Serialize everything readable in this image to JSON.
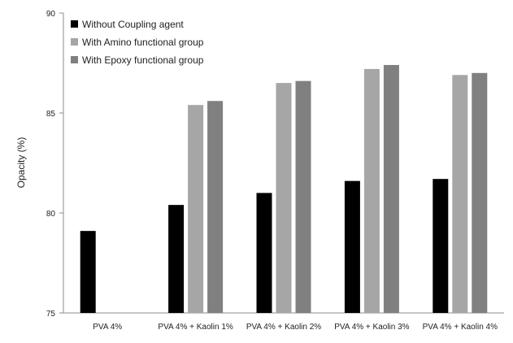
{
  "chart_data": {
    "type": "bar",
    "title": "",
    "xlabel": "",
    "ylabel": "Opacity (%)",
    "ylim": [
      75,
      90
    ],
    "yticks": [
      75,
      80,
      85,
      90
    ],
    "grid": false,
    "legend_position": "top-left",
    "categories": [
      "PVA 4%",
      "PVA 4% + Kaolin 1%",
      "PVA 4% + Kaolin 2%",
      "PVA 4% + Kaolin 3%",
      "PVA 4% + Kaolin 4%"
    ],
    "series": [
      {
        "name": "Without Coupling agent",
        "color": "#000000",
        "values": [
          79.1,
          80.4,
          81.0,
          81.6,
          81.7
        ]
      },
      {
        "name": "With Amino functional group",
        "color": "#a6a6a6",
        "values": [
          null,
          85.4,
          86.5,
          87.2,
          86.9
        ]
      },
      {
        "name": "With Epoxy functional group",
        "color": "#808080",
        "values": [
          null,
          85.6,
          86.6,
          87.4,
          87.0
        ]
      }
    ]
  }
}
